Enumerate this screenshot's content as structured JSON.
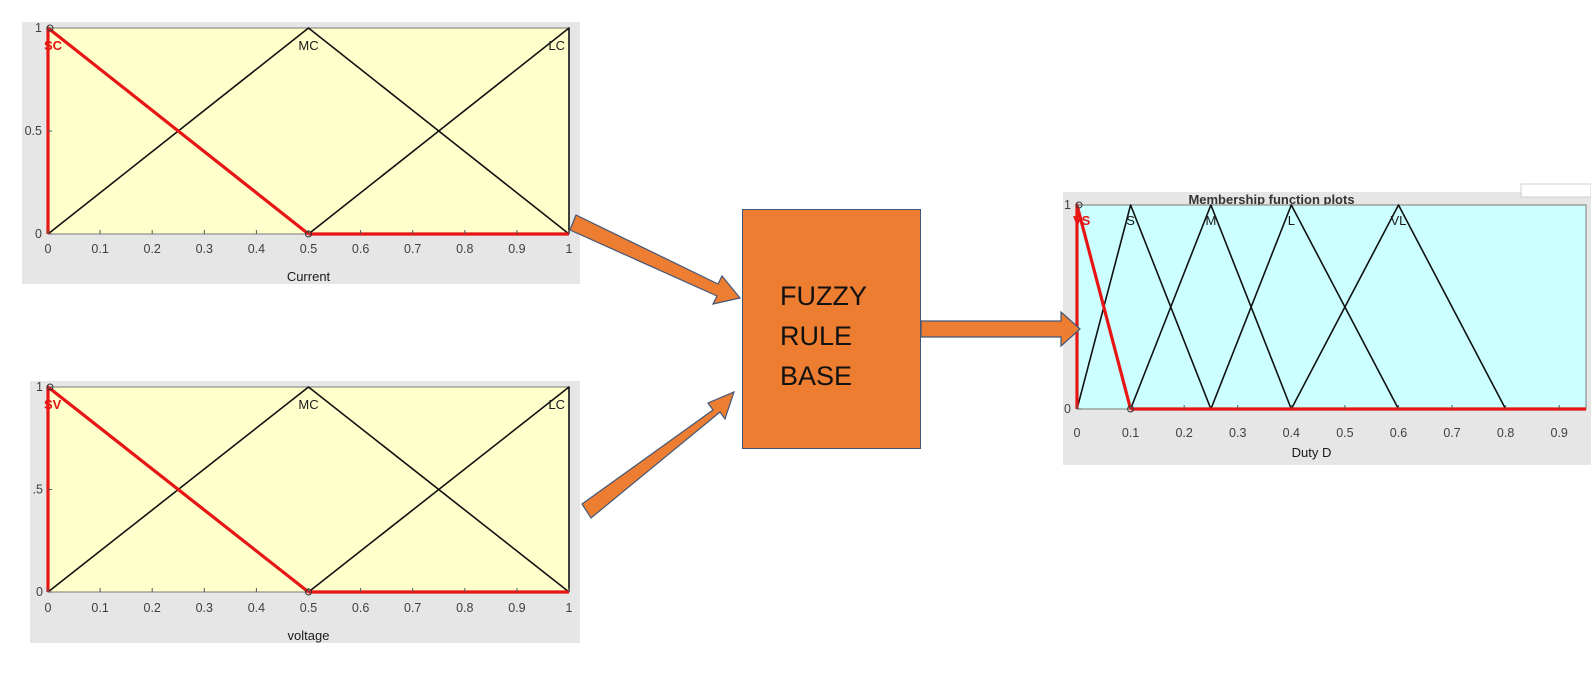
{
  "colors": {
    "input_plot_bg": "#ffffcc",
    "output_plot_bg": "#ccffff",
    "panel_bg": "#e6e6e6",
    "active_mf": "#e81515",
    "arrow_fill": "#ed7d31",
    "arrow_stroke": "#41577a",
    "box_fill": "#ed7d31"
  },
  "fuzzy_box": {
    "lines": [
      "FUZZY",
      "RULE",
      "BASE"
    ]
  },
  "chart_data": [
    {
      "id": "current",
      "type": "line",
      "title": "",
      "xlabel": "Current",
      "xlim": [
        0,
        1
      ],
      "ylim": [
        0,
        1
      ],
      "x_ticks": [
        "0",
        "0.1",
        "0.2",
        "0.3",
        "0.4",
        "0.5",
        "0.6",
        "0.7",
        "0.8",
        "0.9",
        "1"
      ],
      "y_ticks": [
        "0",
        "0.5",
        "1"
      ],
      "active": "SC",
      "series": [
        {
          "name": "SC",
          "x": [
            0,
            0,
            0.5
          ],
          "y": [
            0,
            1,
            0
          ]
        },
        {
          "name": "MC",
          "x": [
            0,
            0.5,
            1
          ],
          "y": [
            0,
            1,
            0
          ]
        },
        {
          "name": "LC",
          "x": [
            0.5,
            1,
            1
          ],
          "y": [
            0,
            1,
            0
          ]
        }
      ]
    },
    {
      "id": "voltage",
      "type": "line",
      "title": "",
      "xlabel": "voltage",
      "xlim": [
        0,
        1
      ],
      "ylim": [
        0,
        1
      ],
      "x_ticks": [
        "0",
        "0.1",
        "0.2",
        "0.3",
        "0.4",
        "0.5",
        "0.6",
        "0.7",
        "0.8",
        "0.9",
        "1"
      ],
      "y_ticks": [
        "0",
        ".5",
        "1"
      ],
      "active": "SV",
      "series": [
        {
          "name": "SV",
          "x": [
            0,
            0,
            0.5
          ],
          "y": [
            0,
            1,
            0
          ]
        },
        {
          "name": "MC",
          "x": [
            0,
            0.5,
            1
          ],
          "y": [
            0,
            1,
            0
          ]
        },
        {
          "name": "LC",
          "x": [
            0.5,
            1,
            1
          ],
          "y": [
            0,
            1,
            0
          ]
        }
      ]
    },
    {
      "id": "duty",
      "type": "line",
      "title": "Membership function plots",
      "xlabel": "Duty D",
      "xlim": [
        0,
        0.95
      ],
      "ylim": [
        0,
        1
      ],
      "x_ticks": [
        "0",
        "0.1",
        "0.2",
        "0.3",
        "0.4",
        "0.5",
        "0.6",
        "0.7",
        "0.8",
        "0.9"
      ],
      "y_ticks": [
        "0",
        "1"
      ],
      "active": "VS",
      "series": [
        {
          "name": "VS",
          "x": [
            0,
            0,
            0.1
          ],
          "y": [
            0,
            1,
            0
          ]
        },
        {
          "name": "S",
          "x": [
            0,
            0.1,
            0.25
          ],
          "y": [
            0,
            1,
            0
          ]
        },
        {
          "name": "M",
          "x": [
            0.1,
            0.25,
            0.4
          ],
          "y": [
            0,
            1,
            0
          ]
        },
        {
          "name": "L",
          "x": [
            0.25,
            0.4,
            0.6
          ],
          "y": [
            0,
            1,
            0
          ]
        },
        {
          "name": "VL",
          "x": [
            0.4,
            0.6,
            0.8
          ],
          "y": [
            0,
            1,
            0
          ]
        }
      ]
    }
  ]
}
